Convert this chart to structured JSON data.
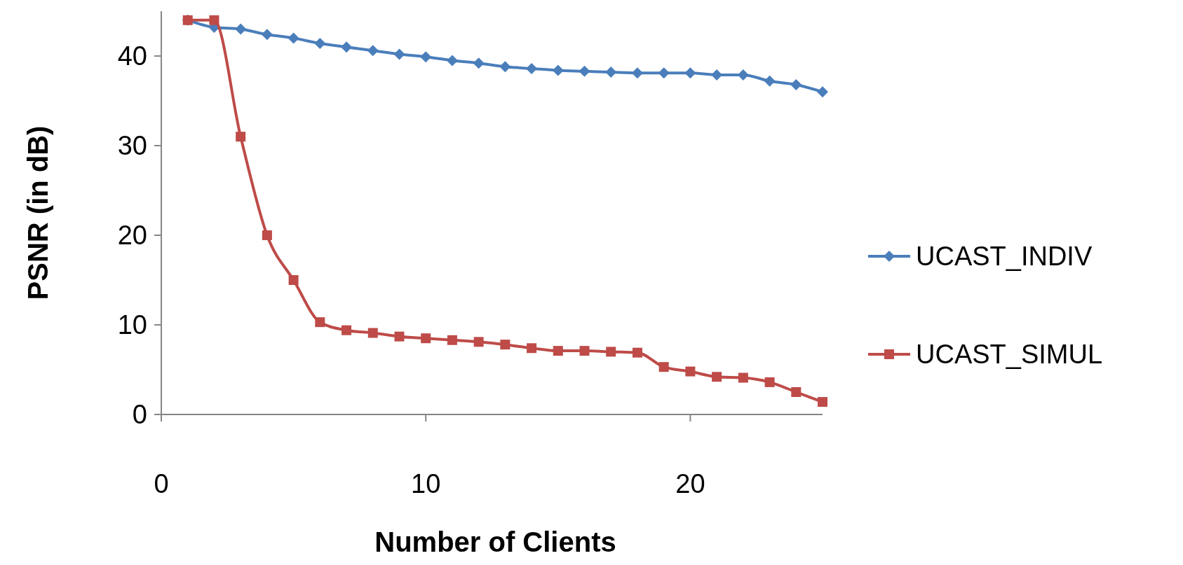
{
  "chart_data": {
    "type": "line",
    "xlabel": "Number of Clients",
    "ylabel": "PSNR (in dB)",
    "x": [
      1,
      2,
      3,
      4,
      5,
      6,
      7,
      8,
      9,
      10,
      11,
      12,
      13,
      14,
      15,
      16,
      17,
      18,
      19,
      20,
      21,
      22,
      23,
      24,
      25
    ],
    "series": [
      {
        "name": "UCAST_INDIV",
        "color": "#4a7ebb",
        "marker": "diamond",
        "values": [
          44,
          43.2,
          43,
          42.4,
          42,
          41.4,
          41,
          40.6,
          40.2,
          39.9,
          39.5,
          39.2,
          38.8,
          38.6,
          38.4,
          38.3,
          38.2,
          38.1,
          38.1,
          38.1,
          37.9,
          37.9,
          37.2,
          36.8,
          36
        ]
      },
      {
        "name": "UCAST_SIMUL",
        "color": "#be4b48",
        "marker": "square",
        "values": [
          44,
          44,
          31,
          20,
          15,
          10.3,
          9.4,
          9.1,
          8.7,
          8.5,
          8.3,
          8.1,
          7.8,
          7.4,
          7.1,
          7.1,
          7,
          6.9,
          5.3,
          4.8,
          4.2,
          4.1,
          3.6,
          2.5,
          1.4
        ]
      }
    ],
    "xlim": [
      0,
      25
    ],
    "xticks": [
      0,
      10,
      20
    ],
    "ylim": [
      0,
      45
    ],
    "yticks": [
      0,
      10,
      20,
      30,
      40
    ],
    "grid": false,
    "legend": "right"
  }
}
